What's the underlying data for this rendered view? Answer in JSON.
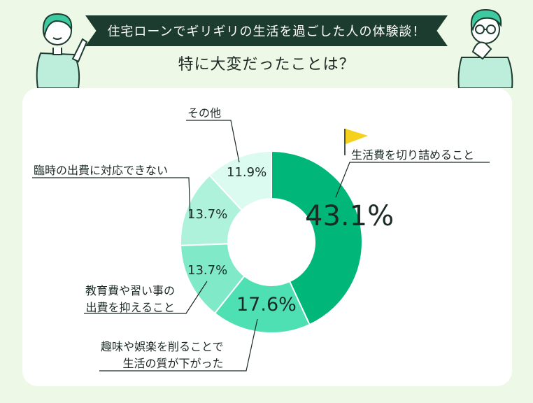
{
  "header": {
    "banner": "住宅ローンでギリギリの生活を過ごした人の体験談！",
    "question": "特に大変だったことは？"
  },
  "colors": {
    "background": "#eef8e6",
    "banner": "#1d3c30",
    "accent_flag": "#f5d01c",
    "slice_1": "#00b779",
    "slice_2": "#4ee0b2",
    "slice_3": "#7fe9c8",
    "slice_4": "#aef2dc",
    "slice_5": "#dbfaf0"
  },
  "chart_data": {
    "type": "pie",
    "variant": "donut",
    "start_angle": "12 o'clock",
    "direction": "clockwise",
    "unit": "%",
    "slices": [
      {
        "label": "生活費を切り詰めること",
        "value": 43.1,
        "display": "43.1%"
      },
      {
        "label": "趣味や娯楽を削ることで\n生活の質が下がった",
        "value": 17.6,
        "display": "17.6%"
      },
      {
        "label": "教育費や習い事の\n出費を抑えること",
        "value": 13.7,
        "display": "13.7%"
      },
      {
        "label": "臨時の出費に対応できない",
        "value": 13.7,
        "display": "13.7%"
      },
      {
        "label": "その他",
        "value": 11.9,
        "display": "11.9%"
      }
    ]
  }
}
